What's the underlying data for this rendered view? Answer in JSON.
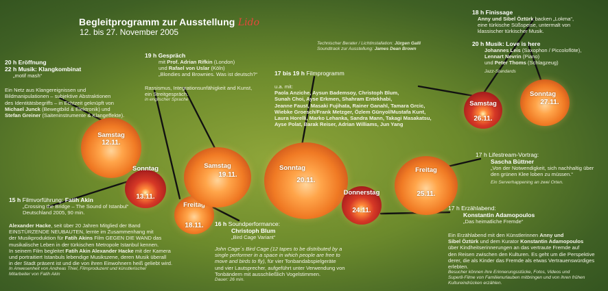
{
  "header": {
    "title": "Begleitprogramm zur Ausstellung",
    "logo_word": "Lido",
    "dates": "12. bis 27. November 2005"
  },
  "credits": {
    "line1_label": "Technischer Berater / Lichtinstallation:",
    "line1_name": "Jürgen Galli",
    "line2_label": "Soundtrack zur Ausstellung:",
    "line2_name": "James Dean Brown"
  },
  "opening": {
    "line1": "20 h Eröffnung",
    "line2_prefix": "22 h Musik:",
    "line2_name": "Klangkombinat",
    "line3": "„motif mash“",
    "desc": [
      "Ein Netz aus Klangereignissen und",
      "Bildmanipulationen – subjektive Abstraktionen",
      "des Identitätsbegriffs – in Echtzeit geknüpft von"
    ],
    "artist1": "Michael Junck",
    "artist1_role": "(Bewegtbild & Elektronik) und",
    "artist2": "Stefan Greiner",
    "artist2_role": "(Saiteninstrumente & Klangeffekte)."
  },
  "gespraech": {
    "head": "19 h Gespräch",
    "line1_pre": "mit",
    "line1_name": "Prof. Adrian Rifkin",
    "line1_post": "(London)",
    "line2_pre": "und",
    "line2_name": "Rafael von Uslar",
    "line2_post": "(Köln)",
    "line3": "„Blondies and Brownies. Was ist deutsch?“",
    "desc1": "Rassismus, Integrationsunfähigkeit and Kunst,",
    "desc2": "ein Streitgespräch.",
    "note": "in englischer Sprache"
  },
  "film_program": {
    "head_time": "17 bis 19 h",
    "head_label": "Filmprogramm",
    "intro": "u.a. mit:",
    "names": [
      "Paola Anziche, Aysun Bademsoy, Christoph Blum,",
      "Sunah Choi,  Ayse Erkmen, Shahram Entekhabi,",
      "Jeanne Faust, Masaki Fujihata, Rainer Ganahl, Tamara Grcic,",
      "Wiebke Groesch/Frank Metzger, Özlem Günyol/Mustafa Kunt,",
      "Laura Horelli, Marko Lehanka, Sandra Mann, Takagi Masakatsu,",
      "Ayse Polat, Barak Reiser, Adrian Williams, Jun Yang"
    ]
  },
  "finissage": {
    "head": "18 h Finissage",
    "line1_names": "Anny und Sibel Öztürk",
    "line1_post": "backen „Lokma“,",
    "line2": "eine türkische Süßspeise, untermalt von",
    "line3": "klassischer türkischer Musik."
  },
  "love_is_here": {
    "head_time": "20 h Musik:",
    "head_title": "Love is here",
    "m1_name": "Johannes Leis",
    "m1_role": "(Saxophon / Piccoloflöte),",
    "m2_name": "Lennart Nevrin",
    "m2_role": "(Piano)",
    "m3_pre": "und",
    "m3_name": "Peter Thoms",
    "m3_role": "(Schlagzeug)",
    "note": "Jazz-Standards"
  },
  "lifestream": {
    "head": "17 h Lifestream-Vortrag:",
    "name": "Sascha Büttner",
    "quote1": "„Von der Notwendigkeit, sich nachhaltig über",
    "quote2": "den grünen Klee loben zu müssen.“",
    "note": "Ein Serverhappening an zwei Orten."
  },
  "erzaehlabend": {
    "head": "17 h Erzählabend:",
    "name": "Konstantin Adamopoulos",
    "title": "„Das heimatliche Fremde“",
    "p1_a": "Ein Erzählabend mit den Künstlerinnen",
    "p1_b": "Anny und",
    "p2_a": "Sibel Öztürk",
    "p2_b": "und dem Kurator",
    "p2_c": "Konstantin Adamopoulos",
    "rest": [
      "über Kindheitserinnerungen an das vertraute Fremde auf",
      "den Reisen zwischen den Kulturen. Es geht um die Perspektive",
      "derer, die als Kinder das Fremde als etwas Vertrauenswürdiges",
      "erlebten."
    ],
    "note1": "Besucher können ihre Erinnerungsstücke, Fotos, Videos und",
    "note2": "Super8-Filme von Familienurlauben mitbringen und von ihren frühen",
    "note3": "Kultureindrücken erzählen."
  },
  "filmvorfuehrung": {
    "head_time": "15 h",
    "head_label": "Filmvorführung:",
    "head_name": "Fatih Akin",
    "title": "„Crossing the Bridge – The Sound of Istanbul“",
    "info": "Deutschland 2005, 90 min."
  },
  "hacke": {
    "l1_name": "Alexander Hacke",
    "l1_rest": ", seit über 20 Jahren Mitglied der Band",
    "l2": "EINSTÜRZENDE NEUBAUTEN, lernte im Zusammenhang mit",
    "l3_a": "der Musikproduktion für",
    "l3_name": "Fatih Akins",
    "l3_b": "Film GEGEN DIE WAND das",
    "l4": "musikalische Leben in der türkischen Metropole Istanbul kennen.",
    "l5_a": "In seinem Film begleitet",
    "l5_name1": "Fatih Akin Alexander Hacke",
    "l5_b": "mit der Kamera",
    "l6": "und portraitiert Istanbuls lebendige Musikszene, deren Musik überall",
    "l7": "in der Stadt präsent ist und die von ihren Einwohnern heiß geliebt wird.",
    "note1": "In Anwesenheit von Andreas Thiel, Filmproduzent und künstlerischer",
    "note2": "Mitarbeiter von Fatih Akin"
  },
  "soundperformance": {
    "head_time": "16 h",
    "head_label": "Soundperformance:",
    "name": "Christoph Blum",
    "title": "„Bird Cage Variant“",
    "cage_i": [
      "John Cage´s Bird Cage (12 tapes to be distributed by a",
      "single performer in a space in which people are free to",
      "move and birds to fly)"
    ],
    "cage_tail": ", für vier Tonbandabspielgeräte",
    "rest": [
      "und vier Lautsprecher, aufgeführt unter Verwendung von",
      "Tonbändern mit ausschließlich Vogelstimmen."
    ],
    "duration": "Dauer: 26 min."
  },
  "lanterns": [
    {
      "id": "sa12",
      "day": "Samstag",
      "date": "12.11."
    },
    {
      "id": "so13",
      "day": "Sonntag",
      "date": "13.11."
    },
    {
      "id": "fr18",
      "day": "Freitag",
      "date": "18.11."
    },
    {
      "id": "sa19",
      "day": "Samstag",
      "date": "19.11."
    },
    {
      "id": "so20",
      "day": "Sonntag",
      "date": "20.11."
    },
    {
      "id": "do24",
      "day": "Donnerstag",
      "date": "24.11."
    },
    {
      "id": "fr25",
      "day": "Freitag",
      "date": "25.11."
    },
    {
      "id": "sa26",
      "day": "Samstag",
      "date": "26.11."
    },
    {
      "id": "so27",
      "day": "Sonntag",
      "date": "27.11."
    }
  ],
  "colors": {
    "accent_logo": "#e5483a",
    "lantern_orange": "#f07a24",
    "lantern_red": "#a51c1c",
    "background_green": "#6c8a2c"
  }
}
